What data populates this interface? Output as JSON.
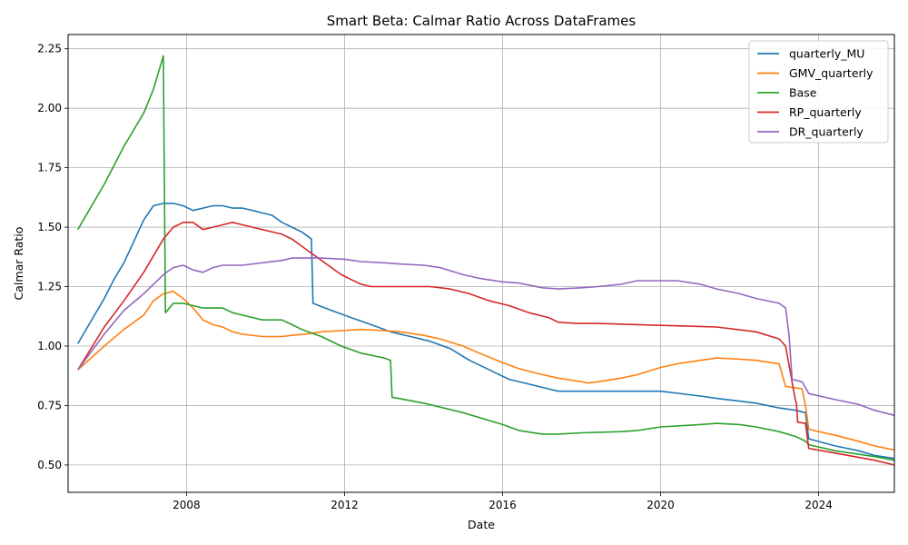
{
  "chart_data": {
    "type": "line",
    "title": "Smart Beta: Calmar Ratio Across DataFrames",
    "xlabel": "Date",
    "ylabel": "Calmar Ratio",
    "xlim": [
      "2005-01-01",
      "2025-12-01"
    ],
    "ylim": [
      0.385,
      2.31
    ],
    "xticks": [
      {
        "label": "2008",
        "date": "2008-01-01"
      },
      {
        "label": "2012",
        "date": "2012-01-01"
      },
      {
        "label": "2016",
        "date": "2016-01-01"
      },
      {
        "label": "2020",
        "date": "2020-01-01"
      },
      {
        "label": "2024",
        "date": "2024-01-01"
      }
    ],
    "yticks": [
      0.5,
      0.75,
      1.0,
      1.25,
      1.5,
      1.75,
      2.0,
      2.25
    ],
    "ytick_labels": [
      "0.50",
      "0.75",
      "1.00",
      "1.25",
      "1.50",
      "1.75",
      "2.00",
      "2.25"
    ],
    "grid": true,
    "legend_position": "top-right",
    "series": [
      {
        "name": "quarterly_MU",
        "color": "#1f77b4",
        "points": [
          [
            "2005-04-01",
            1.01
          ],
          [
            "2005-12-01",
            1.2
          ],
          [
            "2006-03-01",
            1.28
          ],
          [
            "2006-06-01",
            1.35
          ],
          [
            "2006-09-01",
            1.44
          ],
          [
            "2006-12-01",
            1.53
          ],
          [
            "2007-03-01",
            1.59
          ],
          [
            "2007-06-01",
            1.6
          ],
          [
            "2007-09-01",
            1.6
          ],
          [
            "2007-12-01",
            1.59
          ],
          [
            "2008-03-01",
            1.57
          ],
          [
            "2008-06-01",
            1.58
          ],
          [
            "2008-09-01",
            1.59
          ],
          [
            "2008-12-01",
            1.59
          ],
          [
            "2009-03-01",
            1.58
          ],
          [
            "2009-06-01",
            1.58
          ],
          [
            "2009-09-01",
            1.57
          ],
          [
            "2009-12-01",
            1.56
          ],
          [
            "2010-03-01",
            1.55
          ],
          [
            "2010-06-01",
            1.52
          ],
          [
            "2010-09-01",
            1.5
          ],
          [
            "2010-12-01",
            1.48
          ],
          [
            "2011-03-01",
            1.45
          ],
          [
            "2011-03-15",
            1.18
          ],
          [
            "2011-09-01",
            1.15
          ],
          [
            "2012-03-01",
            1.12
          ],
          [
            "2012-09-01",
            1.09
          ],
          [
            "2013-03-01",
            1.06
          ],
          [
            "2013-09-01",
            1.04
          ],
          [
            "2014-03-01",
            1.02
          ],
          [
            "2014-09-01",
            0.99
          ],
          [
            "2015-03-01",
            0.94
          ],
          [
            "2015-09-01",
            0.9
          ],
          [
            "2016-03-01",
            0.86
          ],
          [
            "2016-09-01",
            0.84
          ],
          [
            "2017-03-01",
            0.82
          ],
          [
            "2017-06-01",
            0.81
          ],
          [
            "2018-01-01",
            0.81
          ],
          [
            "2019-01-01",
            0.81
          ],
          [
            "2020-01-01",
            0.81
          ],
          [
            "2021-01-01",
            0.79
          ],
          [
            "2021-06-01",
            0.78
          ],
          [
            "2022-06-01",
            0.76
          ],
          [
            "2023-01-01",
            0.74
          ],
          [
            "2023-06-01",
            0.73
          ],
          [
            "2023-09-01",
            0.72
          ],
          [
            "2023-10-01",
            0.61
          ],
          [
            "2024-06-01",
            0.58
          ],
          [
            "2025-01-01",
            0.56
          ],
          [
            "2025-06-01",
            0.54
          ],
          [
            "2026-01-01",
            0.525
          ],
          [
            "2026-04-01",
            0.52
          ]
        ]
      },
      {
        "name": "GMV_quarterly",
        "color": "#ff7f0e",
        "points": [
          [
            "2005-04-01",
            0.9
          ],
          [
            "2005-12-01",
            1.0
          ],
          [
            "2006-06-01",
            1.07
          ],
          [
            "2006-12-01",
            1.13
          ],
          [
            "2007-03-01",
            1.19
          ],
          [
            "2007-06-01",
            1.22
          ],
          [
            "2007-09-01",
            1.23
          ],
          [
            "2007-12-01",
            1.2
          ],
          [
            "2008-03-01",
            1.16
          ],
          [
            "2008-06-01",
            1.11
          ],
          [
            "2008-09-01",
            1.09
          ],
          [
            "2008-12-01",
            1.08
          ],
          [
            "2009-03-01",
            1.06
          ],
          [
            "2009-06-01",
            1.05
          ],
          [
            "2009-12-01",
            1.04
          ],
          [
            "2010-06-01",
            1.04
          ],
          [
            "2010-09-01",
            1.045
          ],
          [
            "2011-01-01",
            1.05
          ],
          [
            "2011-06-01",
            1.06
          ],
          [
            "2011-12-01",
            1.065
          ],
          [
            "2012-06-01",
            1.07
          ],
          [
            "2013-01-01",
            1.065
          ],
          [
            "2013-06-01",
            1.06
          ],
          [
            "2014-01-01",
            1.045
          ],
          [
            "2014-06-01",
            1.03
          ],
          [
            "2015-01-01",
            1.0
          ],
          [
            "2015-06-01",
            0.97
          ],
          [
            "2016-01-01",
            0.93
          ],
          [
            "2016-06-01",
            0.905
          ],
          [
            "2017-01-01",
            0.88
          ],
          [
            "2017-06-01",
            0.865
          ],
          [
            "2018-01-01",
            0.85
          ],
          [
            "2018-03-01",
            0.845
          ],
          [
            "2018-06-01",
            0.85
          ],
          [
            "2019-01-01",
            0.865
          ],
          [
            "2019-06-01",
            0.88
          ],
          [
            "2020-01-01",
            0.91
          ],
          [
            "2020-06-01",
            0.925
          ],
          [
            "2021-01-01",
            0.94
          ],
          [
            "2021-06-01",
            0.95
          ],
          [
            "2022-01-01",
            0.945
          ],
          [
            "2022-06-01",
            0.94
          ],
          [
            "2023-01-01",
            0.925
          ],
          [
            "2023-03-01",
            0.83
          ],
          [
            "2023-08-01",
            0.82
          ],
          [
            "2023-09-01",
            0.75
          ],
          [
            "2023-10-01",
            0.65
          ],
          [
            "2024-06-01",
            0.625
          ],
          [
            "2025-01-01",
            0.6
          ],
          [
            "2025-06-01",
            0.58
          ],
          [
            "2026-01-01",
            0.56
          ],
          [
            "2026-06-01",
            0.55
          ]
        ]
      },
      {
        "name": "Base",
        "color": "#2ca02c",
        "points": [
          [
            "2005-04-01",
            1.49
          ],
          [
            "2005-12-01",
            1.68
          ],
          [
            "2006-06-01",
            1.84
          ],
          [
            "2006-12-01",
            1.98
          ],
          [
            "2007-03-01",
            2.08
          ],
          [
            "2007-06-01",
            2.22
          ],
          [
            "2007-06-20",
            1.14
          ],
          [
            "2007-09-01",
            1.18
          ],
          [
            "2007-12-01",
            1.18
          ],
          [
            "2008-03-01",
            1.17
          ],
          [
            "2008-06-01",
            1.16
          ],
          [
            "2008-09-01",
            1.16
          ],
          [
            "2008-12-01",
            1.16
          ],
          [
            "2009-03-01",
            1.14
          ],
          [
            "2009-06-01",
            1.13
          ],
          [
            "2009-12-01",
            1.11
          ],
          [
            "2010-06-01",
            1.11
          ],
          [
            "2010-09-01",
            1.09
          ],
          [
            "2010-12-01",
            1.07
          ],
          [
            "2011-06-01",
            1.04
          ],
          [
            "2011-12-01",
            1.0
          ],
          [
            "2012-06-01",
            0.97
          ],
          [
            "2013-01-01",
            0.95
          ],
          [
            "2013-03-01",
            0.94
          ],
          [
            "2013-03-15",
            0.785
          ],
          [
            "2014-01-01",
            0.76
          ],
          [
            "2015-01-01",
            0.72
          ],
          [
            "2016-01-01",
            0.67
          ],
          [
            "2016-06-01",
            0.645
          ],
          [
            "2017-01-01",
            0.63
          ],
          [
            "2017-06-01",
            0.63
          ],
          [
            "2018-01-01",
            0.635
          ],
          [
            "2019-01-01",
            0.64
          ],
          [
            "2019-06-01",
            0.645
          ],
          [
            "2020-01-01",
            0.66
          ],
          [
            "2021-01-01",
            0.67
          ],
          [
            "2021-06-01",
            0.675
          ],
          [
            "2022-01-01",
            0.67
          ],
          [
            "2022-06-01",
            0.66
          ],
          [
            "2023-01-01",
            0.64
          ],
          [
            "2023-06-01",
            0.62
          ],
          [
            "2023-09-01",
            0.6
          ],
          [
            "2023-10-01",
            0.585
          ],
          [
            "2024-06-01",
            0.56
          ],
          [
            "2025-06-01",
            0.535
          ],
          [
            "2026-06-01",
            0.505
          ]
        ]
      },
      {
        "name": "RP_quarterly",
        "color": "#d62728",
        "points": [
          [
            "2005-04-01",
            0.9
          ],
          [
            "2005-12-01",
            1.08
          ],
          [
            "2006-06-01",
            1.19
          ],
          [
            "2006-12-01",
            1.31
          ],
          [
            "2007-06-01",
            1.45
          ],
          [
            "2007-09-01",
            1.5
          ],
          [
            "2007-12-01",
            1.52
          ],
          [
            "2008-03-01",
            1.52
          ],
          [
            "2008-06-01",
            1.49
          ],
          [
            "2008-09-01",
            1.5
          ],
          [
            "2008-12-01",
            1.51
          ],
          [
            "2009-03-01",
            1.52
          ],
          [
            "2009-06-01",
            1.51
          ],
          [
            "2009-09-01",
            1.5
          ],
          [
            "2009-12-01",
            1.49
          ],
          [
            "2010-06-01",
            1.47
          ],
          [
            "2010-09-01",
            1.45
          ],
          [
            "2010-12-01",
            1.42
          ],
          [
            "2011-03-01",
            1.39
          ],
          [
            "2011-06-01",
            1.36
          ],
          [
            "2011-09-01",
            1.33
          ],
          [
            "2011-12-01",
            1.3
          ],
          [
            "2012-03-01",
            1.28
          ],
          [
            "2012-06-01",
            1.26
          ],
          [
            "2012-09-01",
            1.25
          ],
          [
            "2013-03-01",
            1.25
          ],
          [
            "2013-09-01",
            1.25
          ],
          [
            "2014-03-01",
            1.25
          ],
          [
            "2014-09-01",
            1.24
          ],
          [
            "2015-03-01",
            1.22
          ],
          [
            "2015-09-01",
            1.19
          ],
          [
            "2016-03-01",
            1.17
          ],
          [
            "2016-09-01",
            1.14
          ],
          [
            "2017-03-01",
            1.12
          ],
          [
            "2017-06-01",
            1.1
          ],
          [
            "2017-12-01",
            1.095
          ],
          [
            "2018-06-01",
            1.095
          ],
          [
            "2019-06-01",
            1.09
          ],
          [
            "2020-06-01",
            1.085
          ],
          [
            "2021-06-01",
            1.08
          ],
          [
            "2022-06-01",
            1.06
          ],
          [
            "2023-01-01",
            1.03
          ],
          [
            "2023-03-01",
            1.0
          ],
          [
            "2023-06-01",
            0.77
          ],
          [
            "2023-06-10",
            0.76
          ],
          [
            "2023-06-20",
            0.68
          ],
          [
            "2023-09-01",
            0.675
          ],
          [
            "2023-10-01",
            0.57
          ],
          [
            "2024-06-01",
            0.55
          ],
          [
            "2025-06-01",
            0.52
          ],
          [
            "2026-06-01",
            0.48
          ]
        ]
      },
      {
        "name": "DR_quarterly",
        "color": "#9467bd",
        "points": [
          [
            "2005-04-01",
            0.9
          ],
          [
            "2005-12-01",
            1.05
          ],
          [
            "2006-06-01",
            1.15
          ],
          [
            "2006-12-01",
            1.22
          ],
          [
            "2007-06-01",
            1.3
          ],
          [
            "2007-09-01",
            1.33
          ],
          [
            "2007-12-01",
            1.34
          ],
          [
            "2008-03-01",
            1.32
          ],
          [
            "2008-06-01",
            1.31
          ],
          [
            "2008-09-01",
            1.33
          ],
          [
            "2008-12-01",
            1.34
          ],
          [
            "2009-06-01",
            1.34
          ],
          [
            "2009-12-01",
            1.35
          ],
          [
            "2010-06-01",
            1.36
          ],
          [
            "2010-09-01",
            1.37
          ],
          [
            "2010-12-01",
            1.37
          ],
          [
            "2011-06-01",
            1.37
          ],
          [
            "2012-01-01",
            1.365
          ],
          [
            "2012-06-01",
            1.355
          ],
          [
            "2013-01-01",
            1.35
          ],
          [
            "2013-06-01",
            1.345
          ],
          [
            "2014-01-01",
            1.34
          ],
          [
            "2014-06-01",
            1.33
          ],
          [
            "2015-01-01",
            1.3
          ],
          [
            "2015-06-01",
            1.285
          ],
          [
            "2016-01-01",
            1.27
          ],
          [
            "2016-06-01",
            1.265
          ],
          [
            "2017-01-01",
            1.245
          ],
          [
            "2017-06-01",
            1.24
          ],
          [
            "2018-01-01",
            1.245
          ],
          [
            "2018-06-01",
            1.25
          ],
          [
            "2019-01-01",
            1.26
          ],
          [
            "2019-06-01",
            1.275
          ],
          [
            "2020-01-01",
            1.275
          ],
          [
            "2020-06-01",
            1.275
          ],
          [
            "2021-01-01",
            1.26
          ],
          [
            "2021-06-01",
            1.24
          ],
          [
            "2022-01-01",
            1.22
          ],
          [
            "2022-06-01",
            1.2
          ],
          [
            "2023-01-01",
            1.18
          ],
          [
            "2023-03-01",
            1.16
          ],
          [
            "2023-04-01",
            1.05
          ],
          [
            "2023-05-01",
            0.86
          ],
          [
            "2023-08-01",
            0.85
          ],
          [
            "2023-10-01",
            0.8
          ],
          [
            "2024-06-01",
            0.775
          ],
          [
            "2025-01-01",
            0.755
          ],
          [
            "2025-06-01",
            0.73
          ],
          [
            "2026-01-01",
            0.705
          ],
          [
            "2026-06-01",
            0.695
          ]
        ]
      }
    ]
  }
}
